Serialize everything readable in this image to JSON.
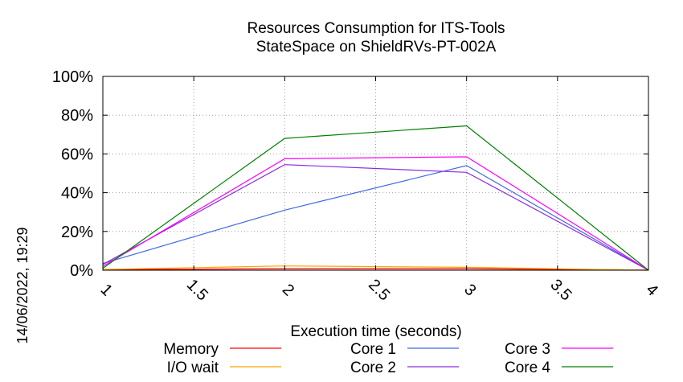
{
  "chart_data": {
    "type": "line",
    "title": [
      "Resources Consumption for ITS-Tools",
      "StateSpace on ShieldRVs-PT-002A"
    ],
    "xlabel": "Execution time (seconds)",
    "ylabel": "",
    "xlim": [
      1,
      4
    ],
    "ylim": [
      0,
      100
    ],
    "x_ticks": [
      "1",
      "1.5",
      "2",
      "2.5",
      "3",
      "3.5",
      "4"
    ],
    "y_ticks": [
      "0%",
      "20%",
      "40%",
      "60%",
      "80%",
      "100%"
    ],
    "grid": true,
    "legend_position": "bottom",
    "timestamp": "14/06/2022, 19:29",
    "series": [
      {
        "name": "Memory",
        "color": "#ff0000",
        "x": [
          1,
          2,
          3,
          4
        ],
        "y": [
          0.3,
          0.8,
          0.8,
          0.1
        ]
      },
      {
        "name": "I/O wait",
        "color": "#ffa500",
        "x": [
          1,
          2,
          3,
          4
        ],
        "y": [
          0.4,
          2.2,
          1.5,
          0
        ]
      },
      {
        "name": "Core 1",
        "color": "#4169e1",
        "x": [
          1,
          2,
          3,
          4
        ],
        "y": [
          3.5,
          31,
          54,
          0
        ]
      },
      {
        "name": "Core 2",
        "color": "#8a2be2",
        "x": [
          1,
          2,
          3,
          4
        ],
        "y": [
          3,
          54.5,
          50.5,
          0
        ]
      },
      {
        "name": "Core 3",
        "color": "#ff00ff",
        "x": [
          1,
          2,
          3,
          4
        ],
        "y": [
          2,
          57.5,
          58.5,
          0
        ]
      },
      {
        "name": "Core 4",
        "color": "#008000",
        "x": [
          1,
          2,
          3,
          4
        ],
        "y": [
          1,
          68,
          74.5,
          0
        ]
      }
    ]
  }
}
